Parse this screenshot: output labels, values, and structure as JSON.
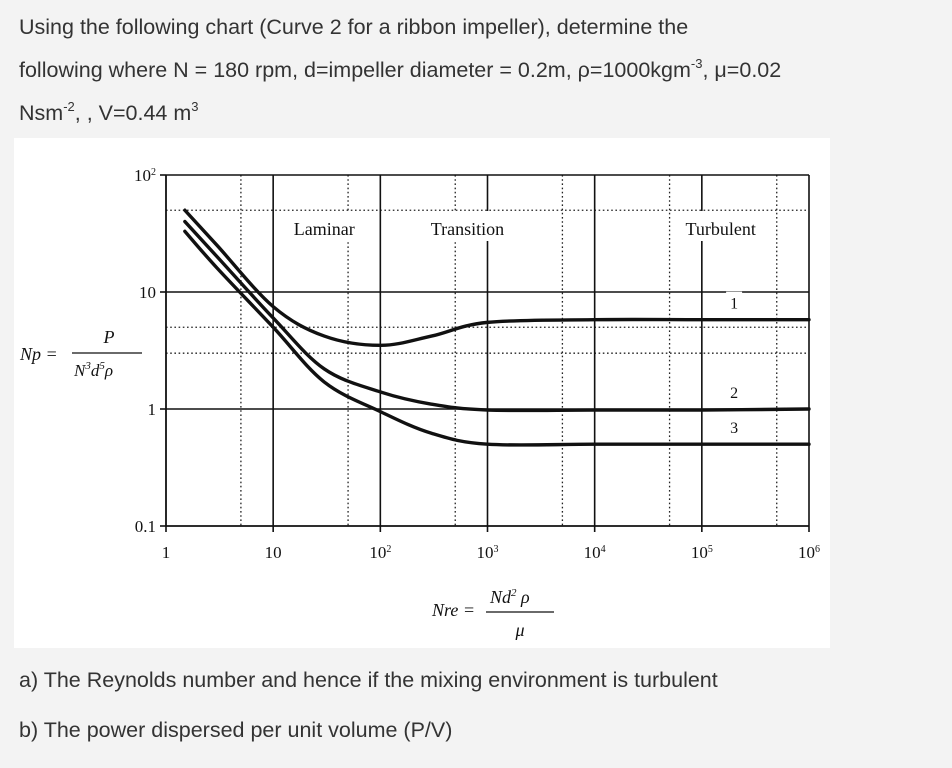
{
  "question": {
    "line1": "Using the following chart (Curve 2 for a ribbon impeller), determine the",
    "line2_pre": "following where N = 180 rpm, d=impeller diameter = 0.2m, ρ=1000kgm",
    "line2_sup1": "-3",
    "line2_post": ", μ=0.02",
    "line3_pre": "Nsm",
    "line3_sup1": "-2",
    "line3_mid": ", , V=0.44 m",
    "line3_sup2": "3"
  },
  "parts": {
    "a": "a) The Reynolds number and hence if the mixing environment is turbulent",
    "b": "b) The power dispersed per unit volume (P/V)"
  },
  "chart_data": {
    "type": "line",
    "x_scale": "log",
    "y_scale": "log",
    "xlim": [
      1,
      1000000
    ],
    "ylim": [
      0.1,
      100
    ],
    "x_ticks": [
      {
        "value": 1,
        "base": "1",
        "exp": ""
      },
      {
        "value": 10,
        "base": "10",
        "exp": ""
      },
      {
        "value": 100,
        "base": "10",
        "exp": "2"
      },
      {
        "value": 1000,
        "base": "10",
        "exp": "3"
      },
      {
        "value": 10000,
        "base": "10",
        "exp": "4"
      },
      {
        "value": 100000,
        "base": "10",
        "exp": "5"
      },
      {
        "value": 1000000,
        "base": "10",
        "exp": "6"
      }
    ],
    "y_ticks": [
      {
        "value": 0.1,
        "base": "0.1",
        "exp": ""
      },
      {
        "value": 1,
        "base": "1",
        "exp": ""
      },
      {
        "value": 10,
        "base": "10",
        "exp": ""
      },
      {
        "value": 100,
        "base": "10",
        "exp": "2"
      }
    ],
    "y_dotted_lines": [
      3,
      5,
      50
    ],
    "x_dotted_lines": [
      5,
      50,
      500,
      5000,
      50000,
      500000
    ],
    "grid": true,
    "ylabel": {
      "lhs": "Np",
      "numerator": "P",
      "den_N": "N",
      "den_N_exp": "3",
      "den_d": "d",
      "den_d_exp": "5",
      "den_rho": "ρ"
    },
    "xlabel": {
      "lhs": "Nre",
      "num_N": "Nd",
      "num_exp": "2",
      "num_rho": "ρ",
      "denominator": "μ"
    },
    "regions": [
      "Laminar",
      "Transition",
      "Turbulent"
    ],
    "series": [
      {
        "name": "1",
        "points": [
          [
            1.5,
            50
          ],
          [
            3,
            25
          ],
          [
            10,
            7.5
          ],
          [
            30,
            4.2
          ],
          [
            100,
            3.5
          ],
          [
            300,
            4.2
          ],
          [
            1000,
            5.5
          ],
          [
            10000,
            5.8
          ],
          [
            100000,
            5.8
          ],
          [
            1000000,
            5.8
          ]
        ]
      },
      {
        "name": "2",
        "points": [
          [
            1.5,
            40
          ],
          [
            3,
            20
          ],
          [
            10,
            6
          ],
          [
            30,
            2.2
          ],
          [
            100,
            1.4
          ],
          [
            300,
            1.1
          ],
          [
            1000,
            0.98
          ],
          [
            10000,
            0.98
          ],
          [
            100000,
            0.98
          ],
          [
            1000000,
            1.0
          ]
        ]
      },
      {
        "name": "3",
        "points": [
          [
            1.5,
            33
          ],
          [
            3,
            16
          ],
          [
            10,
            5
          ],
          [
            30,
            1.7
          ],
          [
            100,
            0.95
          ],
          [
            300,
            0.62
          ],
          [
            1000,
            0.5
          ],
          [
            10000,
            0.5
          ],
          [
            100000,
            0.5
          ],
          [
            1000000,
            0.5
          ]
        ]
      }
    ]
  }
}
